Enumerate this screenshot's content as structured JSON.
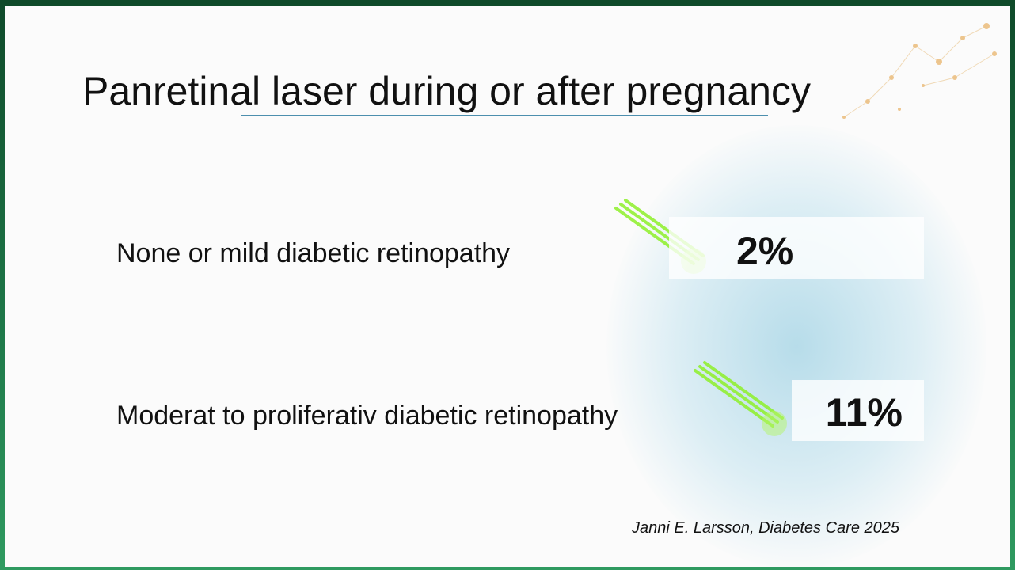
{
  "title": "Panretinal laser during or after pregnancy",
  "rows": [
    {
      "label": "None or mild diabetic retinopathy",
      "value": "2%"
    },
    {
      "label": "Moderat to proliferativ diabetic retinopathy",
      "value": "11%"
    }
  ],
  "citation": "Janni E. Larsson, Diabetes Care 2025"
}
